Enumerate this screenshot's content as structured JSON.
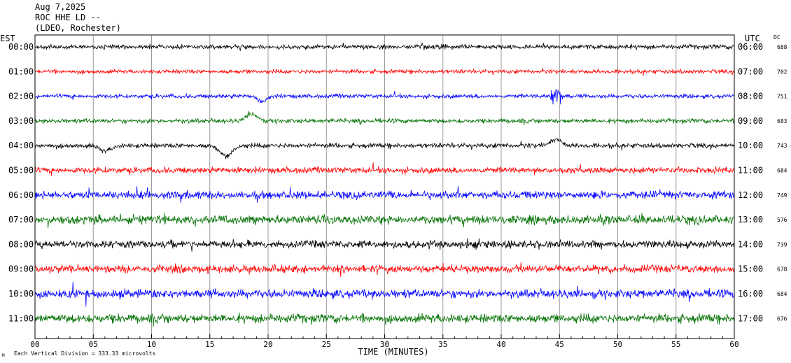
{
  "header": {
    "date": "Aug 7,2025",
    "station": "ROC HHE LD --",
    "network": "(LDEO, Rochester)"
  },
  "left_axis_title": "EST",
  "right_axis_title": "UTC",
  "dc_title": "DC",
  "footer": {
    "scale_note": "Each Vertical Division =  333.33 microvolts",
    "small_mark": "M"
  },
  "chart_data": {
    "type": "line",
    "title": "",
    "xlabel": "TIME (MINUTES)",
    "ylabel": "",
    "xlim": [
      0,
      60
    ],
    "x_ticks": [
      "00",
      "05",
      "10",
      "15",
      "20",
      "25",
      "30",
      "35",
      "40",
      "45",
      "50",
      "55",
      "60"
    ],
    "x_tick_values": [
      0,
      5,
      10,
      15,
      20,
      25,
      30,
      35,
      40,
      45,
      50,
      55,
      60
    ],
    "minute_gridlines": true,
    "colors": [
      "#000000",
      "#ff0000",
      "#0000ff",
      "#007000"
    ],
    "rows": [
      {
        "est": "00:00",
        "utc": "06:00",
        "dc": "688",
        "color": "#000000",
        "noise": 0.55
      },
      {
        "est": "01:00",
        "utc": "07:00",
        "dc": "702",
        "color": "#ff0000",
        "noise": 0.5
      },
      {
        "est": "02:00",
        "utc": "08:00",
        "dc": "751",
        "color": "#0000ff",
        "noise": 0.5
      },
      {
        "est": "03:00",
        "utc": "09:00",
        "dc": "683",
        "color": "#007000",
        "noise": 0.55
      },
      {
        "est": "04:00",
        "utc": "10:00",
        "dc": "743",
        "color": "#000000",
        "noise": 0.6
      },
      {
        "est": "05:00",
        "utc": "11:00",
        "dc": "684",
        "color": "#ff0000",
        "noise": 0.75
      },
      {
        "est": "06:00",
        "utc": "12:00",
        "dc": "749",
        "color": "#0000ff",
        "noise": 0.95
      },
      {
        "est": "07:00",
        "utc": "13:00",
        "dc": "576",
        "color": "#007000",
        "noise": 1.05
      },
      {
        "est": "08:00",
        "utc": "14:00",
        "dc": "739",
        "color": "#000000",
        "noise": 0.95
      },
      {
        "est": "09:00",
        "utc": "15:00",
        "dc": "678",
        "color": "#ff0000",
        "noise": 0.95
      },
      {
        "est": "10:00",
        "utc": "16:00",
        "dc": "684",
        "color": "#0000ff",
        "noise": 1.05
      },
      {
        "est": "11:00",
        "utc": "17:00",
        "dc": "676",
        "color": "#007000",
        "noise": 1.1
      }
    ],
    "events": [
      {
        "row": 2,
        "minute": 19.5,
        "kind": "dip",
        "amp": 1.4,
        "width": 0.35
      },
      {
        "row": 3,
        "minute": 18.6,
        "kind": "bump",
        "amp": -1.6,
        "width": 0.5
      },
      {
        "row": 4,
        "minute": 6.0,
        "kind": "dip",
        "amp": 1.3,
        "width": 0.5
      },
      {
        "row": 4,
        "minute": 16.4,
        "kind": "dip",
        "amp": 2.6,
        "width": 0.5
      },
      {
        "row": 4,
        "minute": 44.7,
        "kind": "bump",
        "amp": -1.4,
        "width": 0.5
      },
      {
        "row": 2,
        "minute": 44.7,
        "kind": "burst",
        "amp": 4.5,
        "width": 0.7
      }
    ]
  }
}
